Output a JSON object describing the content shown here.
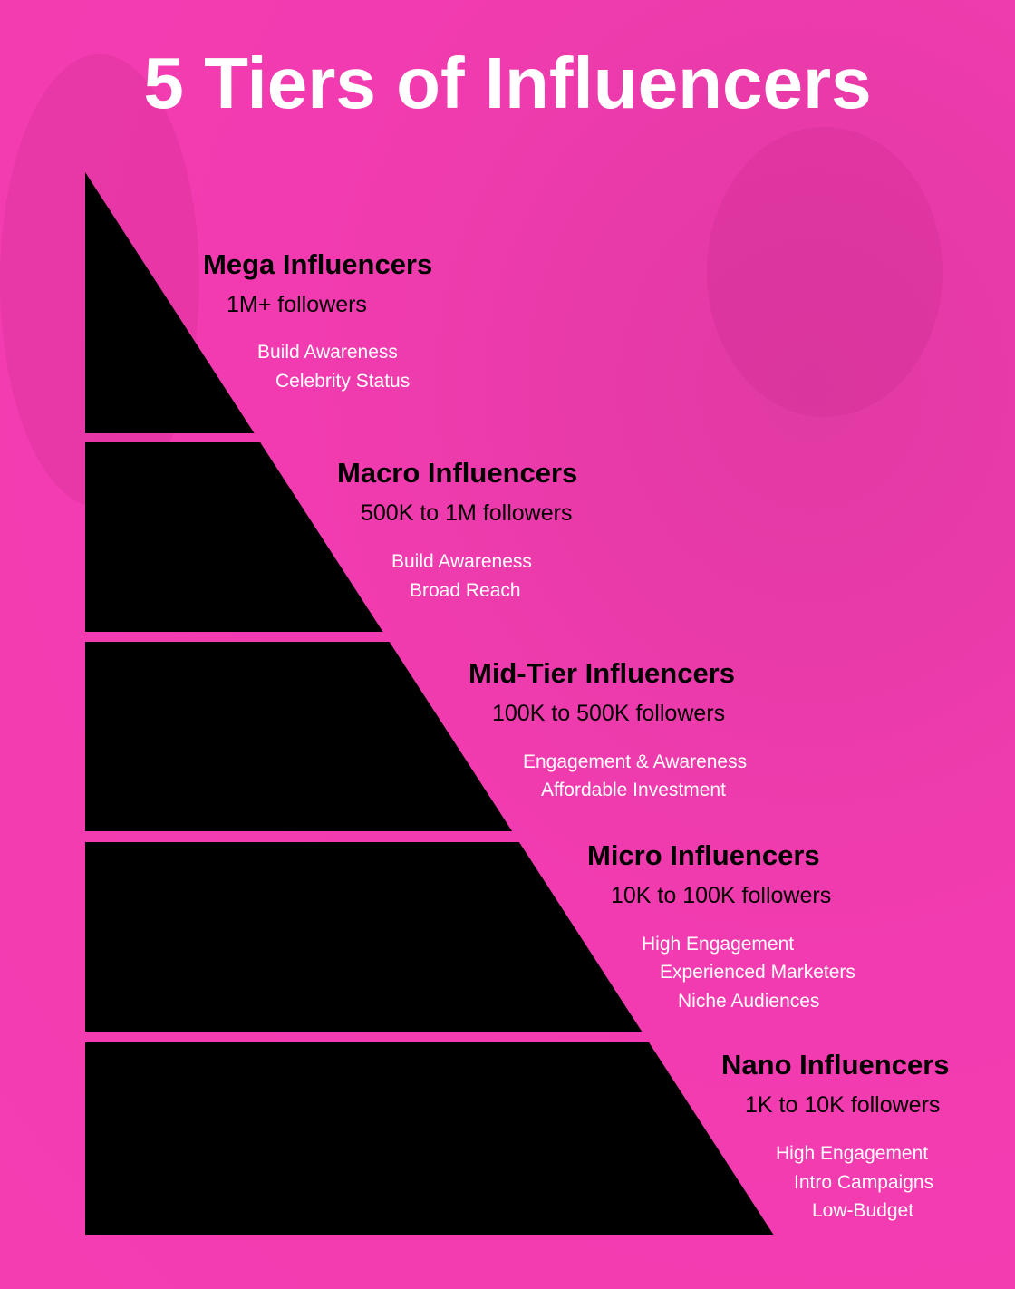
{
  "title": "5 Tiers of Influencers",
  "colors": {
    "background": "#f23bb0",
    "pyramid": "#000000",
    "title": "#ffffff",
    "benefits": "#ffffff"
  },
  "tiers": [
    {
      "name": "Mega Influencers",
      "followers": "1M+ followers",
      "benefits": [
        "Build Awareness",
        "Celebrity Status"
      ]
    },
    {
      "name": "Macro Influencers",
      "followers": "500K to 1M followers",
      "benefits": [
        "Build Awareness",
        "Broad Reach"
      ]
    },
    {
      "name": "Mid-Tier Influencers",
      "followers": "100K to 500K followers",
      "benefits": [
        "Engagement & Awareness",
        "Affordable Investment"
      ]
    },
    {
      "name": "Micro Influencers",
      "followers": "10K to 100K followers",
      "benefits": [
        "High Engagement",
        "Experienced Marketers",
        "Niche Audiences"
      ]
    },
    {
      "name": "Nano Influencers",
      "followers": "1K to 10K followers",
      "benefits": [
        "High Engagement",
        "Intro Campaigns",
        "Low-Budget"
      ]
    }
  ]
}
